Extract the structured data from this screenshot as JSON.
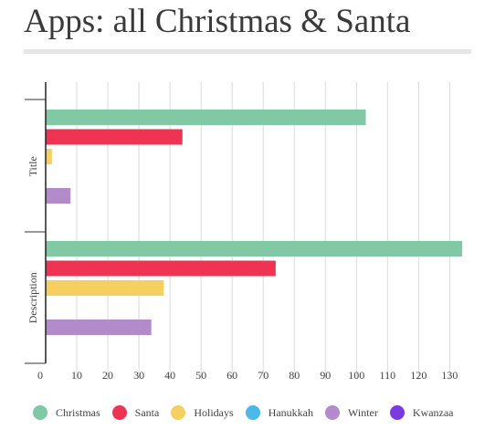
{
  "page": {
    "title": "Apps: all Christmas & Santa"
  },
  "chart_data": {
    "type": "bar",
    "orientation": "horizontal",
    "title": "Apps: all Christmas & Santa",
    "categories": [
      "Title",
      "Description"
    ],
    "series": [
      {
        "name": "Christmas",
        "color": "#80c9a4",
        "values": [
          103,
          134
        ]
      },
      {
        "name": "Santa",
        "color": "#ee3452",
        "values": [
          44,
          74
        ]
      },
      {
        "name": "Holidays",
        "color": "#f5cf60",
        "values": [
          2,
          38
        ]
      },
      {
        "name": "Hanukkah",
        "color": "#4ab9e9",
        "values": [
          0,
          0
        ]
      },
      {
        "name": "Winter",
        "color": "#b38acb",
        "values": [
          8,
          34
        ]
      },
      {
        "name": "Kwanzaa",
        "color": "#7b3ae0",
        "values": [
          0,
          0
        ]
      }
    ],
    "xlim": [
      0,
      134
    ],
    "xticks": [
      0,
      10,
      20,
      30,
      40,
      50,
      60,
      70,
      80,
      90,
      100,
      110,
      120,
      130
    ],
    "xlabel": "",
    "ylabel": "",
    "grid": true,
    "legend_position": "bottom"
  }
}
